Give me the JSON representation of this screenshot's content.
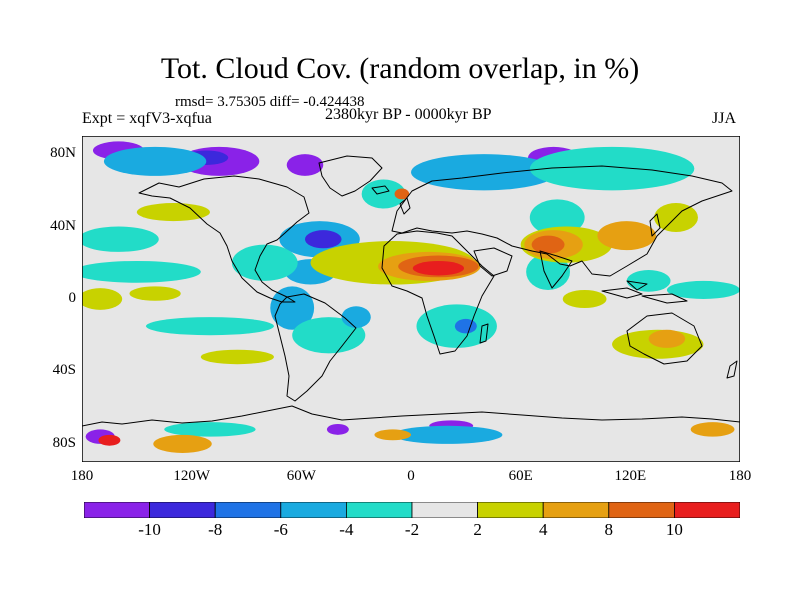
{
  "title": "Tot. Cloud Cov. (random overlap, in %)",
  "stats": "rmsd= 3.75305 diff= -0.424438",
  "experiment": "Expt = xqfV3-xqfua",
  "period": "2380kyr BP - 0000kyr BP",
  "season": "JJA",
  "colors": {
    "n12": "#8a22e8",
    "n10": "#3c28dc",
    "n8": "#1f73e6",
    "n6": "#1aaae0",
    "n4": "#22dcc8",
    "zero": "#e6e6e6",
    "p2": "#c8d200",
    "p4": "#e6a012",
    "p8": "#e06414",
    "p10": "#e81e1e",
    "coast": "#000000"
  },
  "map_data": {
    "type": "filled-contour-map",
    "lon_range": [
      -180,
      180
    ],
    "lat_range": [
      -90,
      90
    ],
    "lat_ticks": [
      {
        "value": 80,
        "label": "80N"
      },
      {
        "value": 40,
        "label": "40N"
      },
      {
        "value": 0,
        "label": "0"
      },
      {
        "value": -40,
        "label": "40S"
      },
      {
        "value": -80,
        "label": "80S"
      }
    ],
    "lon_ticks": [
      {
        "value": -180,
        "label": "180"
      },
      {
        "value": -120,
        "label": "120W"
      },
      {
        "value": -60,
        "label": "60W"
      },
      {
        "value": 0,
        "label": "0"
      },
      {
        "value": 60,
        "label": "60E"
      },
      {
        "value": 120,
        "label": "120E"
      },
      {
        "value": 180,
        "label": "180"
      }
    ],
    "anomalies": [
      {
        "level": "n12",
        "lon": -160,
        "lat": 82,
        "rx": 14,
        "ry": 5
      },
      {
        "level": "n12",
        "lon": -105,
        "lat": 76,
        "rx": 22,
        "ry": 8
      },
      {
        "level": "n10",
        "lon": -112,
        "lat": 78,
        "rx": 12,
        "ry": 4
      },
      {
        "level": "n12",
        "lon": -58,
        "lat": 74,
        "rx": 10,
        "ry": 6
      },
      {
        "level": "n12",
        "lon": 78,
        "lat": 78,
        "rx": 14,
        "ry": 6
      },
      {
        "level": "n12",
        "lon": -170,
        "lat": -76,
        "rx": 8,
        "ry": 4
      },
      {
        "level": "n12",
        "lon": 22,
        "lat": -70,
        "rx": 12,
        "ry": 3
      },
      {
        "level": "n12",
        "lon": -40,
        "lat": -72,
        "rx": 6,
        "ry": 3
      },
      {
        "level": "n6",
        "lon": -140,
        "lat": 76,
        "rx": 28,
        "ry": 8
      },
      {
        "level": "n6",
        "lon": 40,
        "lat": 70,
        "rx": 40,
        "ry": 10
      },
      {
        "level": "n4",
        "lon": 110,
        "lat": 72,
        "rx": 45,
        "ry": 12
      },
      {
        "level": "n4",
        "lon": 80,
        "lat": 45,
        "rx": 15,
        "ry": 10
      },
      {
        "level": "n4",
        "lon": -15,
        "lat": 58,
        "rx": 12,
        "ry": 8
      },
      {
        "level": "n4",
        "lon": -160,
        "lat": 33,
        "rx": 22,
        "ry": 7
      },
      {
        "level": "n4",
        "lon": -150,
        "lat": 15,
        "rx": 35,
        "ry": 6
      },
      {
        "level": "n6",
        "lon": -50,
        "lat": 33,
        "rx": 22,
        "ry": 10
      },
      {
        "level": "n10",
        "lon": -48,
        "lat": 33,
        "rx": 10,
        "ry": 5
      },
      {
        "level": "n6",
        "lon": -55,
        "lat": 15,
        "rx": 14,
        "ry": 7
      },
      {
        "level": "n4",
        "lon": -80,
        "lat": 20,
        "rx": 18,
        "ry": 10
      },
      {
        "level": "n6",
        "lon": -65,
        "lat": -5,
        "rx": 12,
        "ry": 12
      },
      {
        "level": "n4",
        "lon": -45,
        "lat": -20,
        "rx": 20,
        "ry": 10
      },
      {
        "level": "n6",
        "lon": -30,
        "lat": -10,
        "rx": 8,
        "ry": 6
      },
      {
        "level": "n4",
        "lon": -110,
        "lat": -15,
        "rx": 35,
        "ry": 5
      },
      {
        "level": "n4",
        "lon": 25,
        "lat": -15,
        "rx": 22,
        "ry": 12
      },
      {
        "level": "n8",
        "lon": 30,
        "lat": -15,
        "rx": 6,
        "ry": 4
      },
      {
        "level": "n4",
        "lon": 75,
        "lat": 15,
        "rx": 12,
        "ry": 10
      },
      {
        "level": "n4",
        "lon": 160,
        "lat": 5,
        "rx": 20,
        "ry": 5
      },
      {
        "level": "n4",
        "lon": 130,
        "lat": 10,
        "rx": 12,
        "ry": 6
      },
      {
        "level": "n6",
        "lon": 20,
        "lat": -75,
        "rx": 30,
        "ry": 5
      },
      {
        "level": "n4",
        "lon": -110,
        "lat": -72,
        "rx": 25,
        "ry": 4
      },
      {
        "level": "p2",
        "lon": -170,
        "lat": 0,
        "rx": 12,
        "ry": 6
      },
      {
        "level": "p2",
        "lon": -130,
        "lat": 48,
        "rx": 20,
        "ry": 5
      },
      {
        "level": "p2",
        "lon": -10,
        "lat": 20,
        "rx": 45,
        "ry": 12
      },
      {
        "level": "p4",
        "lon": 10,
        "lat": 18,
        "rx": 28,
        "ry": 8
      },
      {
        "level": "p8",
        "lon": 15,
        "lat": 18,
        "rx": 22,
        "ry": 6
      },
      {
        "level": "p10",
        "lon": 15,
        "lat": 17,
        "rx": 14,
        "ry": 4
      },
      {
        "level": "p2",
        "lon": 85,
        "lat": 30,
        "rx": 25,
        "ry": 10
      },
      {
        "level": "p4",
        "lon": 78,
        "lat": 30,
        "rx": 16,
        "ry": 8
      },
      {
        "level": "p8",
        "lon": 75,
        "lat": 30,
        "rx": 9,
        "ry": 5
      },
      {
        "level": "p4",
        "lon": 118,
        "lat": 35,
        "rx": 16,
        "ry": 8
      },
      {
        "level": "p2",
        "lon": 145,
        "lat": 45,
        "rx": 12,
        "ry": 8
      },
      {
        "level": "p2",
        "lon": 135,
        "lat": -25,
        "rx": 25,
        "ry": 8
      },
      {
        "level": "p4",
        "lon": 140,
        "lat": -22,
        "rx": 10,
        "ry": 5
      },
      {
        "level": "p2",
        "lon": -95,
        "lat": -32,
        "rx": 20,
        "ry": 4
      },
      {
        "level": "p2",
        "lon": -140,
        "lat": 3,
        "rx": 14,
        "ry": 4
      },
      {
        "level": "p2",
        "lon": 95,
        "lat": 0,
        "rx": 12,
        "ry": 5
      },
      {
        "level": "p4",
        "lon": -125,
        "lat": -80,
        "rx": 16,
        "ry": 5
      },
      {
        "level": "p10",
        "lon": -165,
        "lat": -78,
        "rx": 6,
        "ry": 3
      },
      {
        "level": "p4",
        "lon": -10,
        "lat": -75,
        "rx": 10,
        "ry": 3
      },
      {
        "level": "p4",
        "lon": 165,
        "lat": -72,
        "rx": 12,
        "ry": 4
      },
      {
        "level": "p8",
        "lon": -5,
        "lat": 58,
        "rx": 4,
        "ry": 3
      }
    ]
  },
  "colorbar": {
    "colors": [
      "n12",
      "n10",
      "n8",
      "n6",
      "n4",
      "zero",
      "p2",
      "p4",
      "p8",
      "p10"
    ],
    "labels": [
      "-10",
      "-8",
      "-6",
      "-4",
      "-2",
      "2",
      "4",
      "8",
      "10"
    ]
  }
}
